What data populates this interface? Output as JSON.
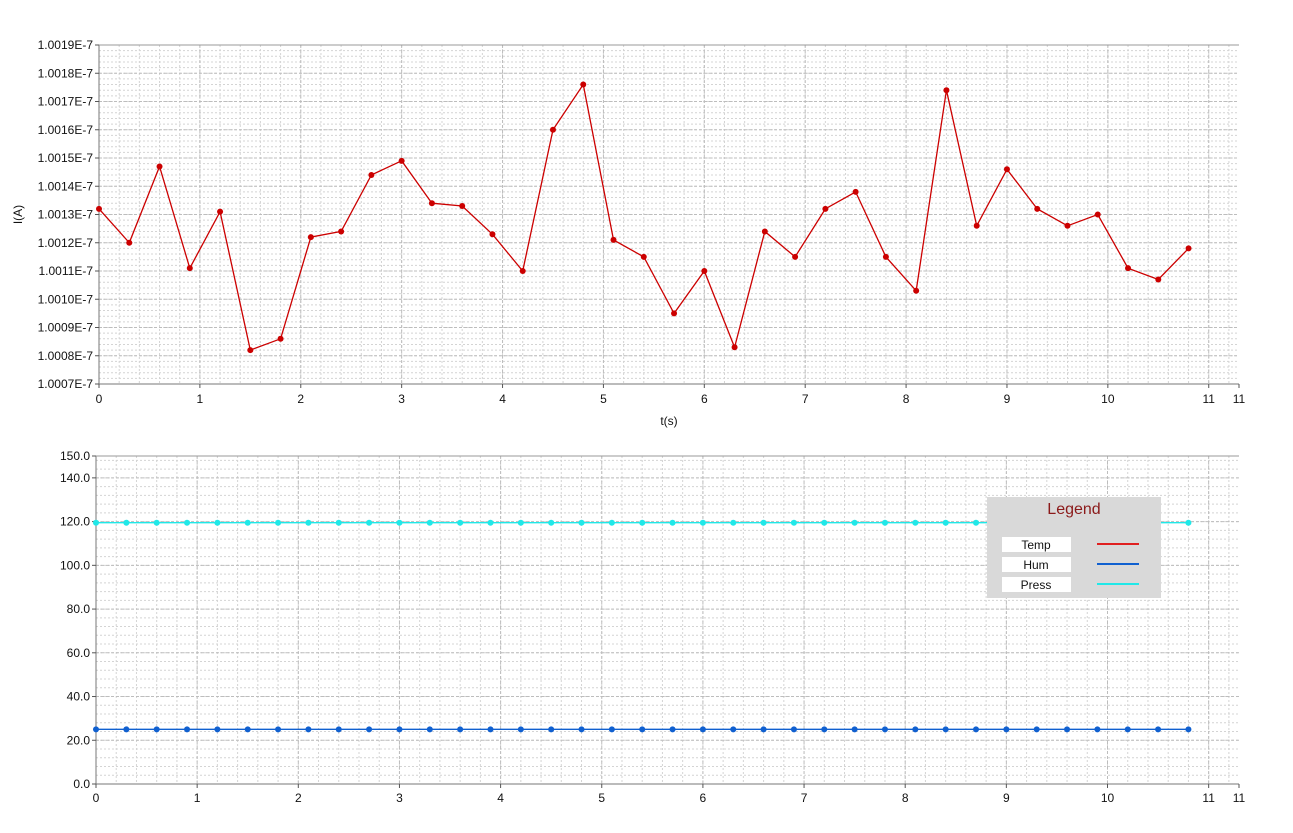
{
  "chart_data": [
    {
      "type": "line",
      "xlabel": "t(s)",
      "ylabel": "I(A)",
      "xlim": [
        0,
        11.3
      ],
      "ylim": [
        1.0007e-07,
        1.0019e-07
      ],
      "grid": true,
      "x_ticks": [
        "0",
        "1",
        "2",
        "3",
        "4",
        "5",
        "6",
        "7",
        "8",
        "9",
        "10",
        "11",
        "11"
      ],
      "y_ticks": [
        "1.0007E-7",
        "1.0008E-7",
        "1.0009E-7",
        "1.0010E-7",
        "1.0011E-7",
        "1.0012E-7",
        "1.0013E-7",
        "1.0014E-7",
        "1.0015E-7",
        "1.0016E-7",
        "1.0017E-7",
        "1.0018E-7",
        "1.0019E-7"
      ],
      "y_tick_values": [
        1.0007e-07,
        1.0008e-07,
        1.0009e-07,
        1.001e-07,
        1.0011e-07,
        1.0012e-07,
        1.0013e-07,
        1.0014e-07,
        1.0015e-07,
        1.0016e-07,
        1.0017e-07,
        1.0018e-07,
        1.0019e-07
      ],
      "series": [
        {
          "color": "#cc0000",
          "x": [
            0,
            0.3,
            0.6,
            0.9,
            1.2,
            1.5,
            1.8,
            2.1,
            2.4,
            2.7,
            3.0,
            3.3,
            3.6,
            3.9,
            4.2,
            4.5,
            4.8,
            5.1,
            5.4,
            5.7,
            6.0,
            6.3,
            6.6,
            6.9,
            7.2,
            7.5,
            7.8,
            8.1,
            8.4,
            8.7,
            9.0,
            9.3,
            9.6,
            9.9,
            10.2,
            10.5,
            10.8
          ],
          "y": [
            1.00132e-07,
            1.0012e-07,
            1.00147e-07,
            1.00111e-07,
            1.00131e-07,
            1.00082e-07,
            1.00086e-07,
            1.00122e-07,
            1.00124e-07,
            1.00144e-07,
            1.00149e-07,
            1.00134e-07,
            1.00133e-07,
            1.00123e-07,
            1.0011e-07,
            1.0016e-07,
            1.00176e-07,
            1.00121e-07,
            1.00115e-07,
            1.00095e-07,
            1.0011e-07,
            1.00083e-07,
            1.00124e-07,
            1.00115e-07,
            1.00132e-07,
            1.00138e-07,
            1.00115e-07,
            1.00103e-07,
            1.00174e-07,
            1.00126e-07,
            1.00146e-07,
            1.00132e-07,
            1.00126e-07,
            1.0013e-07,
            1.00111e-07,
            1.00107e-07,
            1.00118e-07
          ]
        }
      ]
    },
    {
      "type": "line",
      "xlabel": "",
      "ylabel": "",
      "xlim": [
        0,
        11.3
      ],
      "ylim": [
        0,
        150
      ],
      "grid": true,
      "x_ticks": [
        "0",
        "1",
        "2",
        "3",
        "4",
        "5",
        "6",
        "7",
        "8",
        "9",
        "10",
        "11",
        "11"
      ],
      "y_ticks": [
        "0.0",
        "20.0",
        "40.0",
        "60.0",
        "80.0",
        "100.0",
        "120.0",
        "140.0",
        "150.0"
      ],
      "y_tick_values": [
        0,
        20,
        40,
        60,
        80,
        100,
        120,
        140,
        150
      ],
      "legend": {
        "title": "Legend",
        "position": "top-right"
      },
      "series": [
        {
          "name": "Temp",
          "color": "#e02020",
          "x": [],
          "y": []
        },
        {
          "name": "Hum",
          "color": "#1060d0",
          "x": [
            0,
            0.3,
            0.6,
            0.9,
            1.2,
            1.5,
            1.8,
            2.1,
            2.4,
            2.7,
            3.0,
            3.3,
            3.6,
            3.9,
            4.2,
            4.5,
            4.8,
            5.1,
            5.4,
            5.7,
            6.0,
            6.3,
            6.6,
            6.9,
            7.2,
            7.5,
            7.8,
            8.1,
            8.4,
            8.7,
            9.0,
            9.3,
            9.6,
            9.9,
            10.2,
            10.5,
            10.8
          ],
          "y": [
            25,
            25,
            25,
            25,
            25,
            25,
            25,
            25,
            25,
            25,
            25,
            25,
            25,
            25,
            25,
            25,
            25,
            25,
            25,
            25,
            25,
            25,
            25,
            25,
            25,
            25,
            25,
            25,
            25,
            25,
            25,
            25,
            25,
            25,
            25,
            25,
            25
          ]
        },
        {
          "name": "Press",
          "color": "#20e8e8",
          "x": [
            0,
            0.3,
            0.6,
            0.9,
            1.2,
            1.5,
            1.8,
            2.1,
            2.4,
            2.7,
            3.0,
            3.3,
            3.6,
            3.9,
            4.2,
            4.5,
            4.8,
            5.1,
            5.4,
            5.7,
            6.0,
            6.3,
            6.6,
            6.9,
            7.2,
            7.5,
            7.8,
            8.1,
            8.4,
            8.7,
            9.0,
            9.3,
            9.6,
            9.9,
            10.2,
            10.5,
            10.8
          ],
          "y": [
            119.5,
            119.5,
            119.5,
            119.5,
            119.5,
            119.5,
            119.5,
            119.5,
            119.5,
            119.5,
            119.5,
            119.5,
            119.5,
            119.5,
            119.5,
            119.5,
            119.5,
            119.5,
            119.5,
            119.5,
            119.5,
            119.5,
            119.5,
            119.5,
            119.5,
            119.5,
            119.5,
            119.5,
            119.5,
            119.5,
            119.5,
            119.5,
            119.5,
            119.5,
            119.5,
            119.5,
            119.5
          ]
        }
      ]
    }
  ]
}
